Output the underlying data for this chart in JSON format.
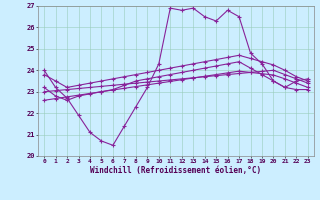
{
  "xlabel": "Windchill (Refroidissement éolien,°C)",
  "xlim": [
    -0.5,
    23.5
  ],
  "ylim": [
    20,
    27
  ],
  "yticks": [
    20,
    21,
    22,
    23,
    24,
    25,
    26,
    27
  ],
  "xticks": [
    0,
    1,
    2,
    3,
    4,
    5,
    6,
    7,
    8,
    9,
    10,
    11,
    12,
    13,
    14,
    15,
    16,
    17,
    18,
    19,
    20,
    21,
    22,
    23
  ],
  "background_color": "#cceeff",
  "grid_color": "#99ccbb",
  "line_color": "#882299",
  "line1": [
    24.0,
    23.2,
    22.7,
    21.9,
    21.1,
    20.7,
    20.5,
    21.4,
    22.3,
    23.2,
    24.3,
    26.9,
    26.8,
    26.9,
    26.5,
    26.3,
    26.8,
    26.5,
    24.8,
    24.3,
    23.5,
    23.2,
    23.5,
    23.6
  ],
  "line2": [
    23.2,
    22.8,
    22.6,
    22.8,
    22.9,
    23.0,
    23.1,
    23.3,
    23.5,
    23.6,
    23.7,
    23.8,
    23.9,
    24.0,
    24.1,
    24.2,
    24.3,
    24.4,
    24.1,
    23.8,
    23.5,
    23.2,
    23.1,
    23.1
  ],
  "line3_upper": [
    23.8,
    23.5,
    23.2,
    23.3,
    23.4,
    23.5,
    23.6,
    23.7,
    23.8,
    23.9,
    24.0,
    24.1,
    24.2,
    24.3,
    24.4,
    24.5,
    24.6,
    24.7,
    24.55,
    24.4,
    24.25,
    24.0,
    23.7,
    23.5
  ],
  "line4_diag1": [
    23.0,
    23.05,
    23.1,
    23.15,
    23.2,
    23.25,
    23.3,
    23.35,
    23.4,
    23.45,
    23.5,
    23.55,
    23.6,
    23.65,
    23.7,
    23.75,
    23.8,
    23.85,
    23.9,
    23.95,
    24.0,
    23.8,
    23.6,
    23.4
  ],
  "line5_diag2": [
    22.6,
    22.68,
    22.76,
    22.84,
    22.92,
    23.0,
    23.08,
    23.16,
    23.24,
    23.32,
    23.4,
    23.48,
    23.56,
    23.64,
    23.72,
    23.8,
    23.88,
    23.96,
    23.9,
    23.84,
    23.78,
    23.6,
    23.4,
    23.2
  ]
}
